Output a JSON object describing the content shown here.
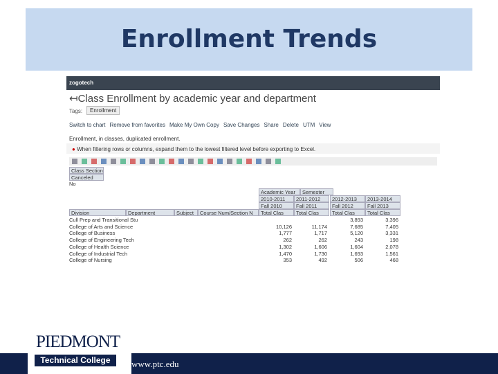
{
  "slide": {
    "title": "Enrollment Trends",
    "footer_url": "www.ptc.edu",
    "logo": {
      "name": "PIEDMONT",
      "subtitle": "Technical College"
    }
  },
  "app": {
    "brand": "zogotech",
    "page_title": "Class Enrollment by academic year and department",
    "tags_label": "Tags:",
    "tag": "Enrollment",
    "menu": [
      "Switch to chart",
      "Remove from favorites",
      "Make My Own Copy",
      "Save Changes",
      "Share",
      "Delete",
      "UTM",
      "View"
    ],
    "description": "Enrollment, in classes, duplicated enrollment.",
    "warning": "When filtering rows or columns, expand them to the lowest filtered level before exporting to Excel.",
    "filter": {
      "title": "Class Sections",
      "field": "Canceled",
      "value": "No"
    },
    "table": {
      "column_fields": [
        "Academic Year",
        "Semester"
      ],
      "years": [
        "2010-2011",
        "2011-2012",
        "2012-2013",
        "2013-2014"
      ],
      "terms": [
        "Fall 2010",
        "Fall 2011",
        "Fall 2012",
        "Fall 2013"
      ],
      "measures": [
        "Total Clas",
        "Total Clas",
        "Total Clas",
        "Total Clas"
      ],
      "row_fields": [
        "Division",
        "Department",
        "Subject",
        "Course Num/Section N"
      ],
      "rows": [
        {
          "label": "Cull Prep and Transitional Stu",
          "values": [
            null,
            null,
            "3,893",
            "3,396"
          ]
        },
        {
          "label": "College of Arts and Science",
          "values": [
            "10,126",
            "11,174",
            "7,685",
            "7,405"
          ]
        },
        {
          "label": "College of Business",
          "values": [
            "1,777",
            "1,717",
            "5,120",
            "3,331"
          ]
        },
        {
          "label": "College of Engineering Tech",
          "values": [
            "262",
            "262",
            "243",
            "198"
          ]
        },
        {
          "label": "College of Health Science",
          "values": [
            "1,302",
            "1,606",
            "1,604",
            "2,078"
          ]
        },
        {
          "label": "College of Industrial Tech",
          "values": [
            "1,470",
            "1,730",
            "1,693",
            "1,561"
          ]
        },
        {
          "label": "College of Nursing",
          "values": [
            "353",
            "492",
            "506",
            "468"
          ]
        }
      ]
    }
  }
}
